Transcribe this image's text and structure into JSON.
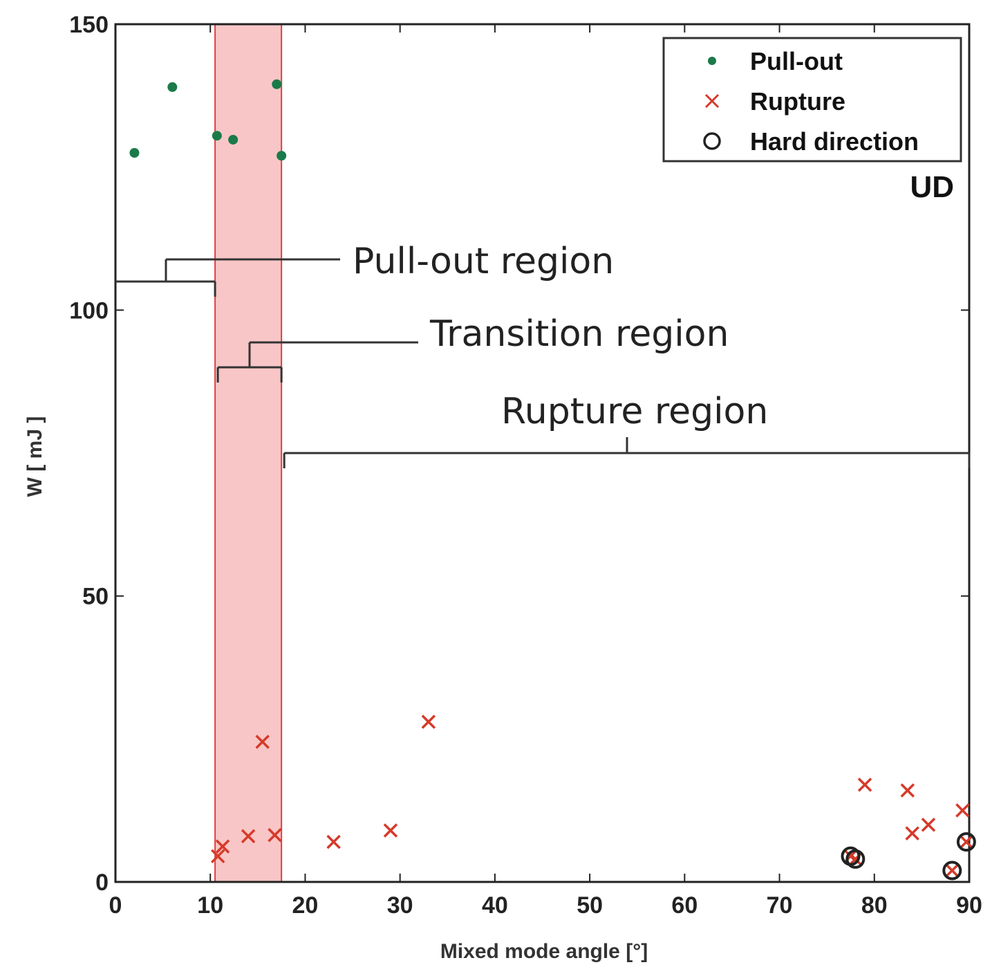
{
  "chart_data": {
    "type": "scatter",
    "xlabel": "Mixed mode angle [°]",
    "ylabel": "W [ mJ ]",
    "xlim": [
      0,
      90
    ],
    "ylim": [
      0,
      150
    ],
    "xticks": [
      0,
      10,
      20,
      30,
      40,
      50,
      60,
      70,
      80,
      90
    ],
    "yticks": [
      0,
      50,
      100,
      150
    ],
    "grid": false,
    "legend_position": "top-right",
    "tag": "UD",
    "shaded_band": {
      "x": [
        10.5,
        17.5
      ],
      "color": "#f8c6c6",
      "edge_color": "#e04040"
    },
    "regions": [
      {
        "label": "Pull-out region",
        "x_range": [
          0,
          10.5
        ],
        "y": 105
      },
      {
        "label": "Transition region",
        "x_range": [
          10.5,
          17.5
        ],
        "y": 90
      },
      {
        "label": "Rupture region",
        "x_range": [
          17.5,
          90
        ],
        "y": 75
      }
    ],
    "series": [
      {
        "name": "Pull-out",
        "marker": "dot",
        "color": "#1a7a4a",
        "points": [
          [
            2,
            127.5
          ],
          [
            6,
            139
          ],
          [
            10.7,
            130.5
          ],
          [
            12.4,
            129.8
          ],
          [
            17,
            139.5
          ],
          [
            17.5,
            127
          ]
        ]
      },
      {
        "name": "Rupture",
        "marker": "x",
        "color": "#d63a2a",
        "points": [
          [
            10.8,
            4.5
          ],
          [
            11.3,
            6.2
          ],
          [
            14,
            8
          ],
          [
            15.5,
            24.5
          ],
          [
            16.8,
            8.2
          ],
          [
            23,
            7
          ],
          [
            29,
            9
          ],
          [
            33,
            28
          ],
          [
            77.5,
            4.5
          ],
          [
            78,
            4
          ],
          [
            79,
            17
          ],
          [
            83.5,
            16
          ],
          [
            84,
            8.5
          ],
          [
            85.7,
            10
          ],
          [
            88.2,
            2
          ],
          [
            89.3,
            12.5
          ],
          [
            89.7,
            7
          ]
        ]
      },
      {
        "name": "Hard direction",
        "marker": "circle",
        "color": "#222222",
        "points": [
          [
            77.5,
            4.5
          ],
          [
            78,
            4
          ],
          [
            88.2,
            2
          ],
          [
            89.7,
            7
          ]
        ]
      }
    ]
  }
}
